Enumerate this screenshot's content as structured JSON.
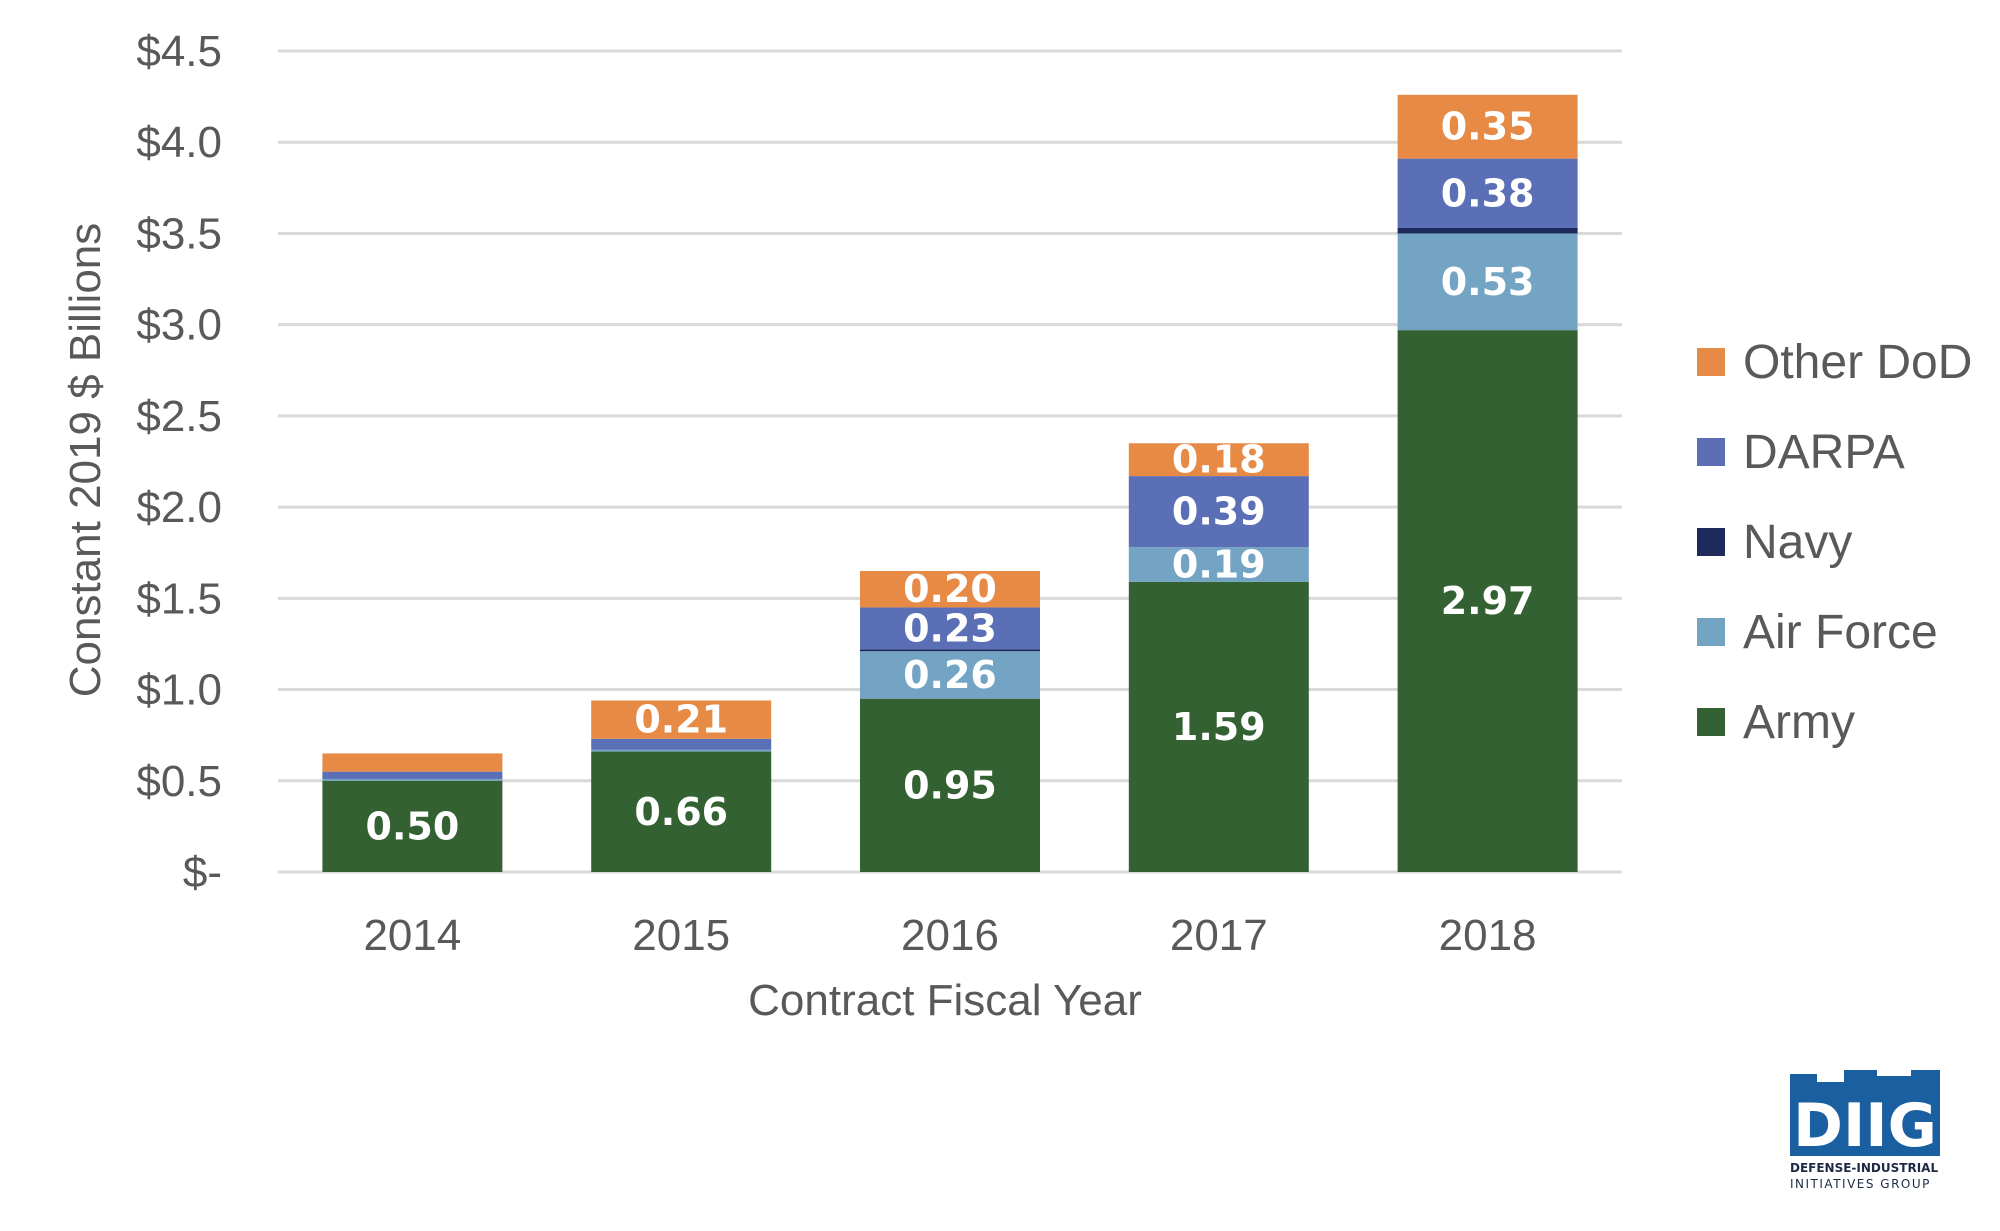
{
  "chart_data": {
    "type": "bar",
    "stacked": true,
    "categories": [
      "2014",
      "2015",
      "2016",
      "2017",
      "2018"
    ],
    "series": [
      {
        "name": "Army",
        "color": "#336132",
        "values": [
          0.5,
          0.66,
          0.95,
          1.59,
          2.97
        ],
        "labels": [
          "0.50",
          "0.66",
          "0.95",
          "1.59",
          "2.97"
        ]
      },
      {
        "name": "Air Force",
        "color": "#74a4c3",
        "values": [
          0.01,
          0.01,
          0.26,
          0.19,
          0.53
        ],
        "labels": [
          "",
          "",
          "0.26",
          "0.19",
          "0.53"
        ]
      },
      {
        "name": "Navy",
        "color": "#1f2a5c",
        "values": [
          0.0,
          0.0,
          0.01,
          0.0,
          0.03
        ],
        "labels": [
          "",
          "",
          "",
          "",
          ""
        ]
      },
      {
        "name": "DARPA",
        "color": "#5a6fb5",
        "values": [
          0.04,
          0.06,
          0.23,
          0.39,
          0.38
        ],
        "labels": [
          "",
          "",
          "0.23",
          "0.39",
          "0.38"
        ]
      },
      {
        "name": "Other DoD",
        "color": "#e68a46",
        "values": [
          0.1,
          0.21,
          0.2,
          0.18,
          0.35
        ],
        "labels": [
          "",
          "0.21",
          "0.20",
          "0.18",
          "0.35"
        ]
      }
    ],
    "legend_order": [
      "Other DoD",
      "DARPA",
      "Navy",
      "Air Force",
      "Army"
    ],
    "legend_position": "right",
    "xlabel": "Contract Fiscal Year",
    "ylabel": "Constant 2019 $ Billions",
    "ylim": [
      0,
      4.5
    ],
    "yticks": [
      0,
      0.5,
      1.0,
      1.5,
      2.0,
      2.5,
      3.0,
      3.5,
      4.0,
      4.5
    ],
    "ytick_labels": [
      "$-",
      "$0.5",
      "$1.0",
      "$1.5",
      "$2.0",
      "$2.5",
      "$3.0",
      "$3.5",
      "$4.0",
      "$4.5"
    ],
    "grid": "horizontal",
    "grid_color": "#d9d9d9"
  },
  "logo": {
    "text": "DIIG",
    "line1": "DEFENSE-INDUSTRIAL",
    "line2": "INITIATIVES GROUP",
    "color": "#1a5fa0"
  }
}
